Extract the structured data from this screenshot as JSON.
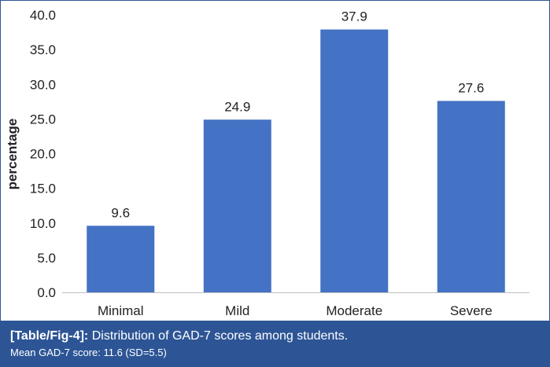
{
  "chart_data": {
    "type": "bar",
    "categories": [
      "Minimal",
      "Mild",
      "Moderate",
      "Severe"
    ],
    "values": [
      9.6,
      24.9,
      37.9,
      27.6
    ],
    "data_labels": [
      "9.6",
      "24.9",
      "37.9",
      "27.6"
    ],
    "ylabel": "percentage",
    "xlabel": "",
    "ylim": [
      0,
      40
    ],
    "yticks": [
      "0.0",
      "5.0",
      "10.0",
      "15.0",
      "20.0",
      "25.0",
      "30.0",
      "35.0",
      "40.0"
    ],
    "grid": false,
    "legend": "none",
    "bar_color": "#4472c4"
  },
  "caption": {
    "tag": "[Table/Fig-4]:",
    "text": "Distribution of GAD-7 scores among students.",
    "subtext": "Mean GAD-7 score: 11.6 (SD=5.5)",
    "background_color": "#2d5596"
  }
}
